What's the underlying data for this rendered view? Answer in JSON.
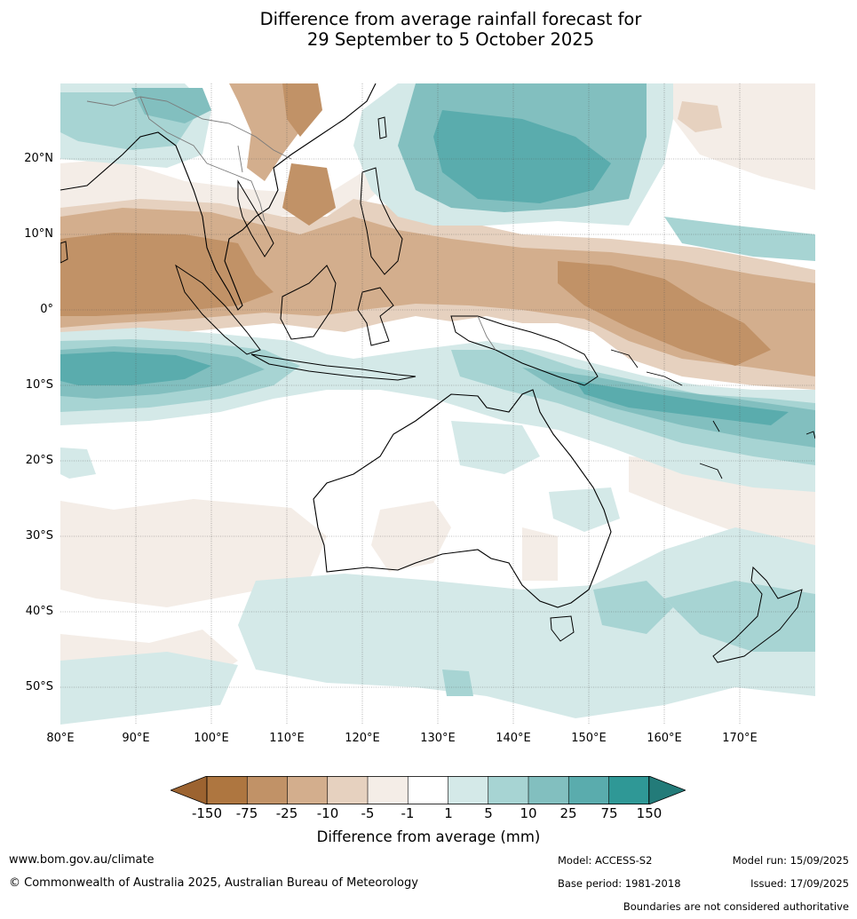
{
  "title": {
    "line1": "Difference from average rainfall forecast for",
    "line2": "29 September to 5 October 2025"
  },
  "map": {
    "lat_labels": [
      "20°N",
      "10°N",
      "0°",
      "10°S",
      "20°S",
      "30°S",
      "40°S",
      "50°S"
    ],
    "lon_labels": [
      "80°E",
      "90°E",
      "100°E",
      "110°E",
      "120°E",
      "130°E",
      "140°E",
      "150°E",
      "160°E",
      "170°E"
    ]
  },
  "legend": {
    "title": "Difference from average (mm)",
    "ticks": [
      "-150",
      "-75",
      "-25",
      "-10",
      "-5",
      "-1",
      "1",
      "5",
      "10",
      "25",
      "75",
      "150"
    ],
    "colors": [
      "#9c6330",
      "#ae7640",
      "#c19267",
      "#d3ae8d",
      "#e6d1bf",
      "#f4ede7",
      "#ffffff",
      "#d4e9e8",
      "#a7d4d3",
      "#82bfbf",
      "#5aacad",
      "#2f9896",
      "#237b79"
    ]
  },
  "footer": {
    "url": "www.bom.gov.au/climate",
    "copyright": "© Commonwealth of Australia 2025, Australian Bureau of Meteorology",
    "model": "Model: ACCESS-S2",
    "base_period": "Base period: 1981-2018",
    "model_run": "Model run: 15/09/2025",
    "issued": "Issued: 17/09/2025",
    "boundaries": "Boundaries are not considered authoritative"
  }
}
